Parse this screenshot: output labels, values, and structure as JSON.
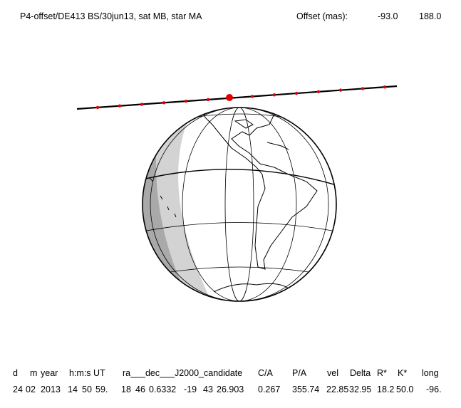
{
  "header": {
    "title": "P4-offset/DE413 BS/30jun13, sat MB, star MA",
    "offset_label": "Offset (mas):",
    "offset_values": [
      "-93.0",
      "188.0"
    ]
  },
  "table": {
    "headers": [
      "d",
      "m",
      "year",
      "h:m:s UT",
      "ra___dec___J2000_candidate",
      "C/A",
      "P/A",
      "vel",
      "Delta",
      "R*",
      "K*",
      "long"
    ],
    "rows": [
      [
        "24",
        "02",
        "2013",
        "14",
        "50",
        "59.",
        "18",
        "46",
        "0.6332",
        "-19",
        "43",
        "26.903",
        "0.267",
        "355.74",
        "22.85",
        "32.95",
        "18.2",
        "50.0",
        "-96."
      ]
    ]
  }
}
